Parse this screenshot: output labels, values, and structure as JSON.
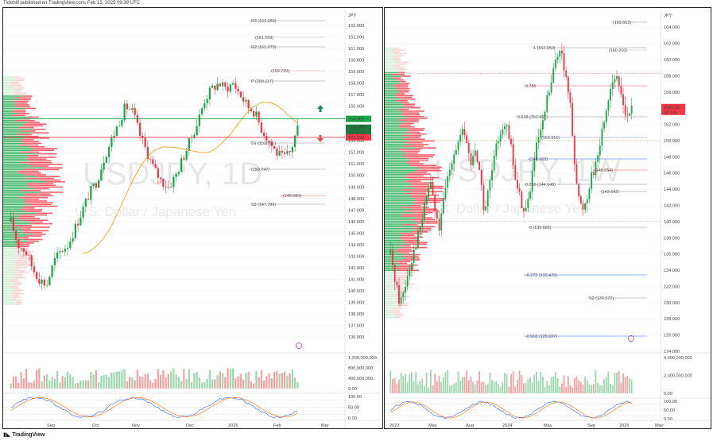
{
  "header": {
    "text": "Tickmill published on TradingView.com, Feb 13, 2025 09:39 UTC"
  },
  "footer": {
    "text": "TradingView"
  },
  "colors": {
    "up": "#26a69a",
    "down": "#ef5350",
    "bull_bright": "#1aa84a",
    "bear_bright": "#f23645",
    "ma": "#f7a21b",
    "grid": "#f0f0f0",
    "stoch_k": "#2962ff",
    "stoch_d": "#ff6d00"
  },
  "left": {
    "symbol": "USDJPY, 1D",
    "subtitle": "U.S. Dollar / Japanese Yen",
    "currency": "JPY",
    "price_ticks": [
      "163.000",
      "162.000",
      "161.000",
      "160.000",
      "159.000",
      "158.000",
      "157.000",
      "156.000",
      "155.000",
      "154.000",
      "153.000",
      "152.000",
      "151.000",
      "150.000",
      "149.000",
      "148.000",
      "147.000",
      "146.000",
      "145.000",
      "144.000",
      "143.000",
      "142.000",
      "141.000",
      "140.000",
      "139.000",
      "138.000",
      "137.000",
      "136.000"
    ],
    "labels": {
      "tag_high": "154.900",
      "tag_price": "154.136",
      "tag_time": "13:20:29",
      "tag_low": "153.298"
    },
    "levels": [
      "R3 (163.283)",
      "(161.569)",
      "R2 (161.079)",
      "(159.739)",
      "P (158.117)",
      "S1 (152.551)",
      "(150.747)",
      "(149.580)",
      "S3 (147.786)"
    ],
    "volume_ticks": [
      "1,200,000,000",
      "800,000,000",
      "400,000,000",
      "0.00"
    ],
    "osc_ticks": [
      "100.00",
      "50.00",
      "0.00"
    ],
    "x_labels": [
      "Sep",
      "Oct",
      "Nov",
      "Dec",
      "2025",
      "Feb",
      "Mar"
    ]
  },
  "right": {
    "symbol": "USDJPY, 1W",
    "subtitle": "U.S. Dollar / Japanese Yen",
    "currency": "JPY",
    "price_ticks": [
      "164.000",
      "162.000",
      "160.000",
      "158.000",
      "156.000",
      "154.000",
      "152.000",
      "150.000",
      "148.000",
      "146.000",
      "144.000",
      "142.000",
      "140.000",
      "138.000",
      "136.000",
      "134.000",
      "132.000",
      "130.000",
      "128.000",
      "126.000",
      "124.000"
    ],
    "labels": {
      "tag_price": "154.136",
      "tag_time": "3d 14h"
    },
    "levels": [
      "(165.553)",
      "1 (162.050)",
      "(160.210)",
      "0.786",
      "0.618 (152.457)",
      "(150.916)",
      "(148.163)",
      "(145.954)",
      "0.236 (144.648)",
      "(143.642)",
      "0 (139.682)",
      "-0.272 (133.470)",
      "S2 (130.571)",
      "-0.618 (125.697)"
    ],
    "volume_ticks": [
      "4,000,000,000",
      "2,000,000,000",
      "0.00"
    ],
    "osc_ticks": [
      "100.00",
      "50.00",
      "0.00"
    ],
    "x_labels": [
      "2023",
      "May",
      "Aug",
      "2024",
      "May",
      "Sep",
      "2025",
      "May"
    ]
  }
}
